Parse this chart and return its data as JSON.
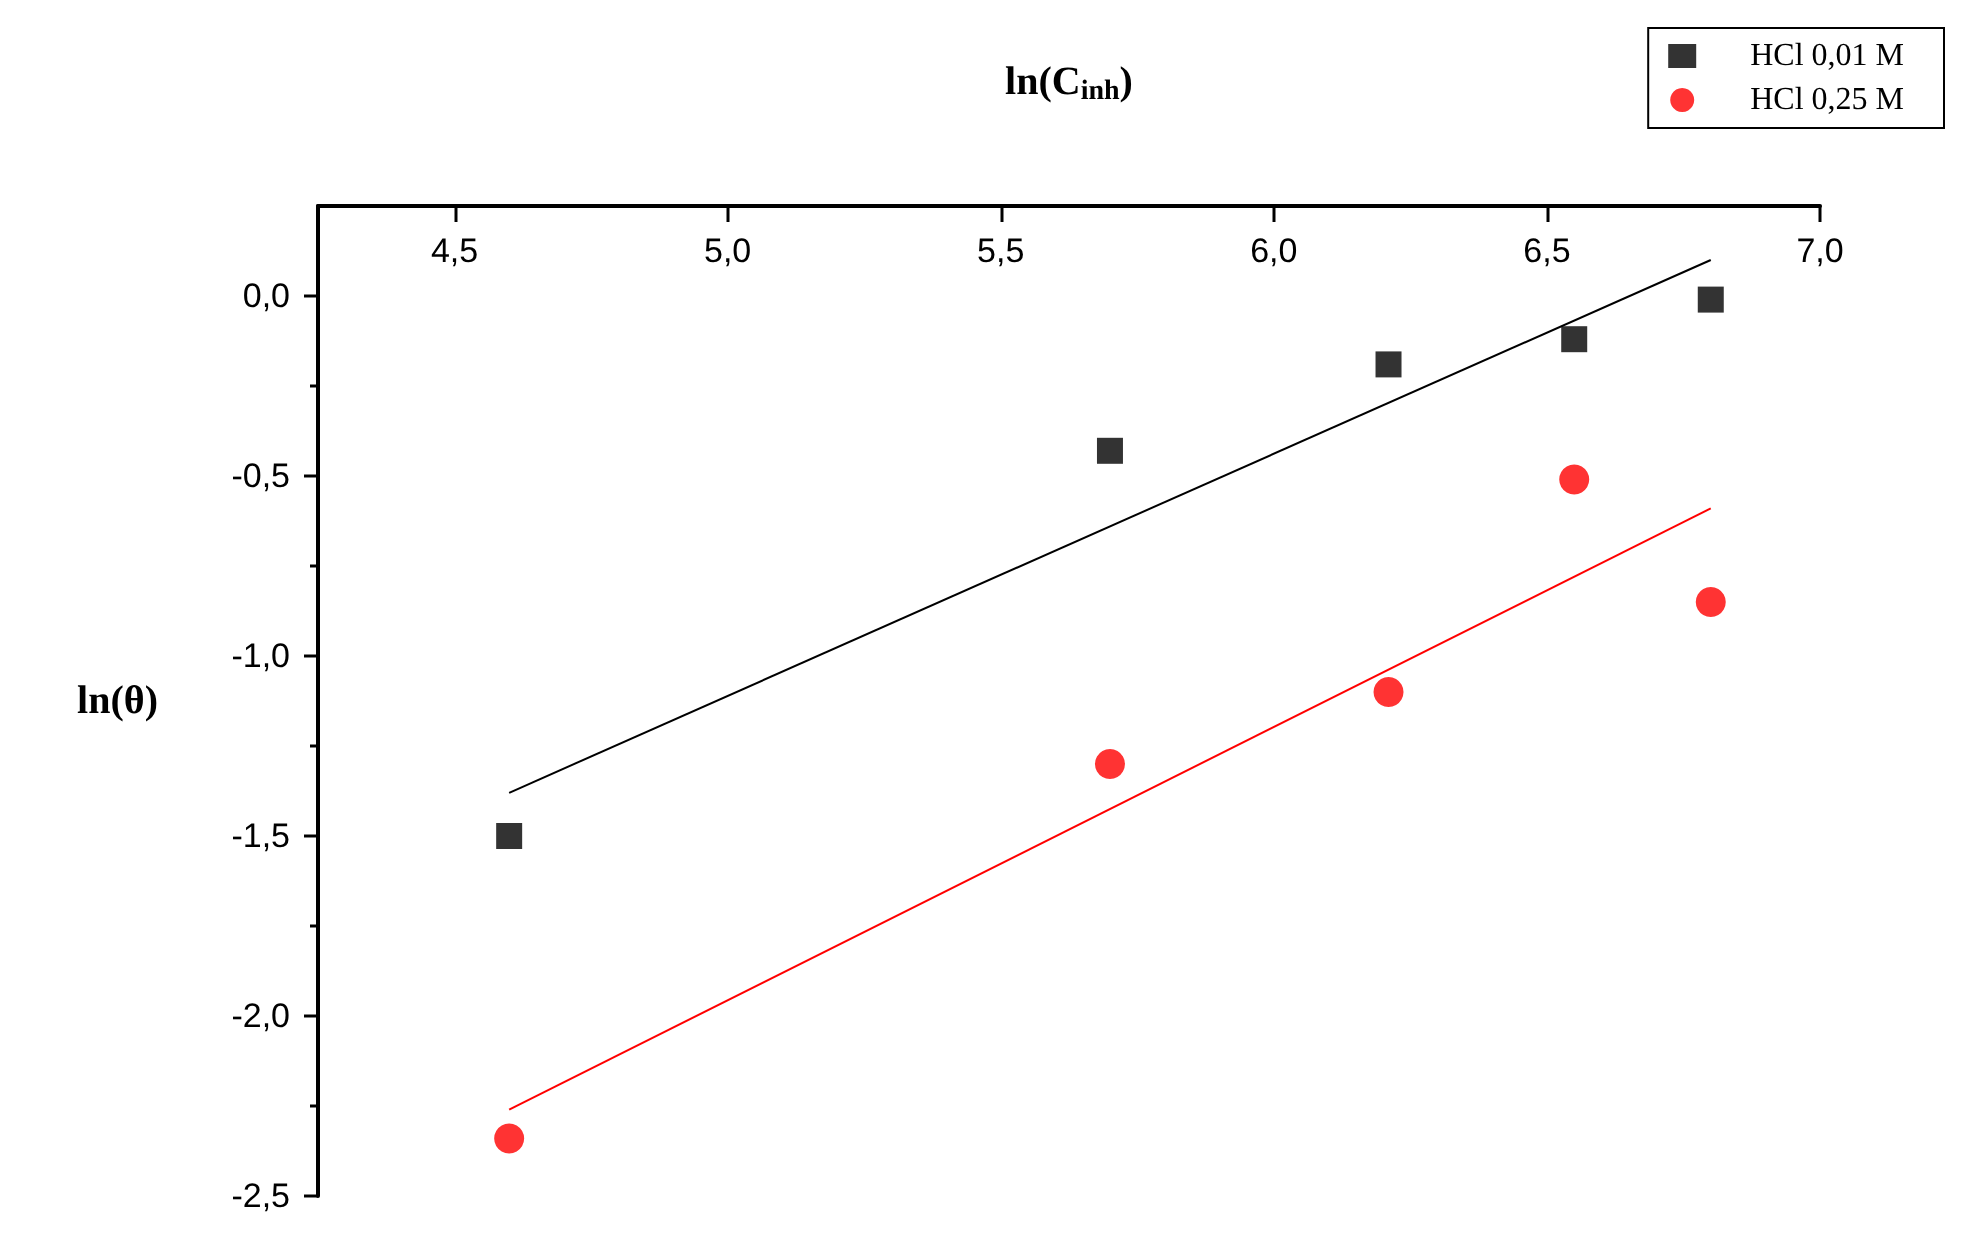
{
  "chart_data": {
    "type": "scatter",
    "xlabel": "ln(C$_{inh}$)",
    "ylabel": "ln(θ)",
    "xlim": [
      4.25,
      7.0
    ],
    "xticks": [
      {
        "value": 4.5,
        "label": "4,5"
      },
      {
        "value": 5.0,
        "label": "5,0"
      },
      {
        "value": 5.5,
        "label": "5,5"
      },
      {
        "value": 6.0,
        "label": "6,0"
      },
      {
        "value": 6.5,
        "label": "6,5"
      },
      {
        "value": 7.0,
        "label": "7,0"
      }
    ],
    "ylim": [
      -2.5,
      0.25
    ],
    "yticks": [
      {
        "value": -2.5,
        "label": "-2,5"
      },
      {
        "value": -2.0,
        "label": "-2,0"
      },
      {
        "value": -1.5,
        "label": "-1,5"
      },
      {
        "value": -1.0,
        "label": "-1,0"
      },
      {
        "value": -0.5,
        "label": "-0,5"
      },
      {
        "value": 0.0,
        "label": "0,0"
      }
    ],
    "grid": false,
    "legend": "top right",
    "series": [
      {
        "name": "HCl 0,01 M",
        "color": "#000000",
        "marker": "square",
        "x": [
          4.6,
          5.7,
          6.21,
          6.55,
          6.8
        ],
        "values": [
          -1.5,
          -0.43,
          -0.19,
          -0.12,
          -0.01
        ]
      },
      {
        "name": "HCl 0,25 M",
        "color": "#ff0000",
        "marker": "circle",
        "x": [
          4.6,
          5.7,
          6.21,
          6.55,
          6.8
        ],
        "values": [
          -2.34,
          -1.3,
          -1.1,
          -0.51,
          -0.85
        ]
      },
      {
        "type": "line",
        "color": "#000000",
        "marker": "none",
        "x": [
          4.6,
          6.8
        ],
        "values": [
          -1.38,
          0.1
        ]
      },
      {
        "type": "line",
        "color": "#ff0000",
        "marker": "none",
        "x": [
          4.6,
          6.8
        ],
        "values": [
          -2.26,
          -0.59
        ]
      }
    ]
  }
}
